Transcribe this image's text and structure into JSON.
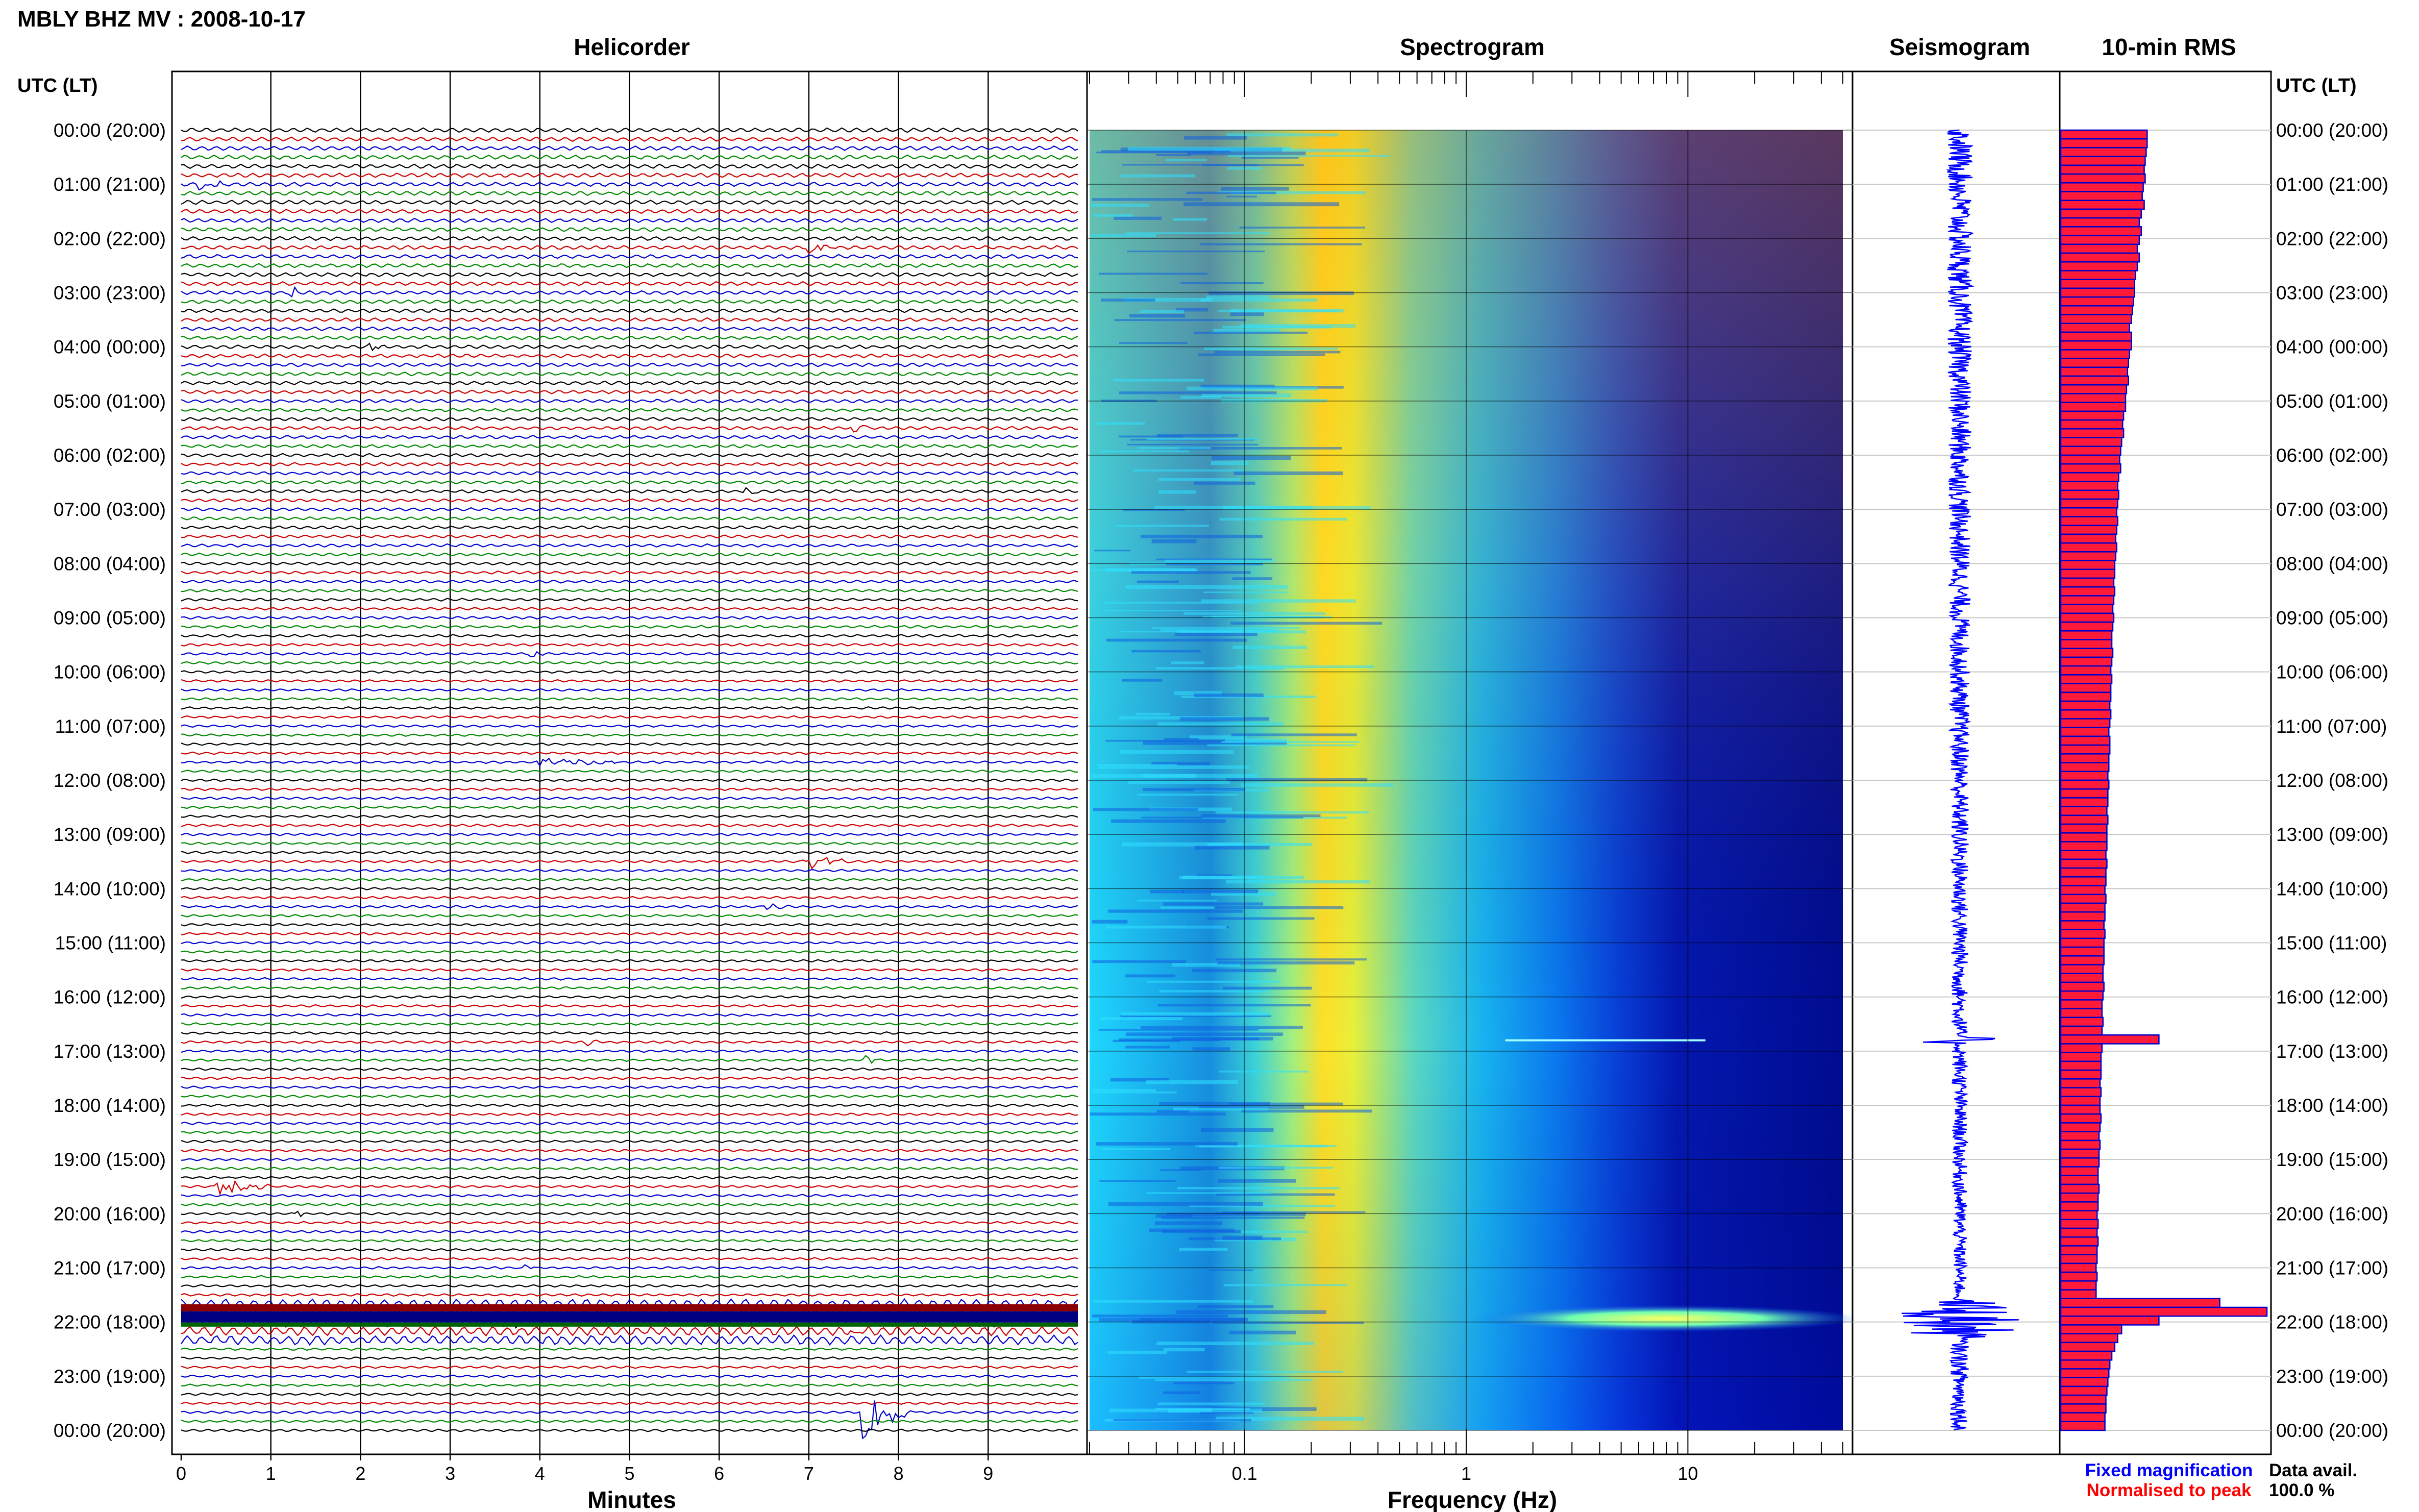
{
  "title": "MBLY BHZ MV : 2008-10-17",
  "left_axis_header": "UTC (LT)",
  "right_axis_header": "UTC (LT)",
  "panels": {
    "helicorder": "Helicorder",
    "spectrogram": "Spectrogram",
    "seismogram": "Seismogram",
    "rms": "10-min RMS"
  },
  "xlabels": {
    "helicorder": "Minutes",
    "spectrogram": "Frequency (Hz)"
  },
  "legend": {
    "fixed": "Fixed magnification",
    "normalised": "Normalised to peak",
    "fixed_color": "#0000ff",
    "normalised_color": "#ff0000"
  },
  "availability": {
    "label": "Data avail.",
    "value": "100.0 %"
  },
  "chart_data": {
    "type": "helicorder-spectrogram-rms",
    "time_labels": [
      "00:00 (20:00)",
      "01:00 (21:00)",
      "02:00 (22:00)",
      "03:00 (23:00)",
      "04:00 (00:00)",
      "05:00 (01:00)",
      "06:00 (02:00)",
      "07:00 (03:00)",
      "08:00 (04:00)",
      "09:00 (05:00)",
      "10:00 (06:00)",
      "11:00 (07:00)",
      "12:00 (08:00)",
      "13:00 (09:00)",
      "14:00 (10:00)",
      "15:00 (11:00)",
      "16:00 (12:00)",
      "17:00 (13:00)",
      "18:00 (14:00)",
      "19:00 (15:00)",
      "20:00 (16:00)",
      "21:00 (17:00)",
      "22:00 (18:00)",
      "23:00 (19:00)",
      "00:00 (20:00)"
    ],
    "helicorder": {
      "x_ticks": [
        "0",
        "1",
        "2",
        "3",
        "4",
        "5",
        "6",
        "7",
        "8",
        "9"
      ],
      "xlim": [
        0,
        10
      ],
      "trace_colors": [
        "#000000",
        "#cc0000",
        "#0000cc",
        "#008800"
      ],
      "traces_per_hour": 6
    },
    "spectrogram": {
      "x_ticks": [
        "0.1",
        "1",
        "10"
      ],
      "xlim": [
        0.02,
        50
      ],
      "scale": "log",
      "colormap": [
        "#00008b",
        "#0000ff",
        "#00bfff",
        "#00ffff",
        "#7fff7f",
        "#ffff00",
        "#ffa500"
      ]
    },
    "rms": {
      "interval_minutes": 10,
      "values": [
        0.88,
        0.88,
        0.87,
        0.86,
        0.85,
        0.86,
        0.84,
        0.83,
        0.85,
        0.82,
        0.8,
        0.82,
        0.8,
        0.78,
        0.8,
        0.78,
        0.76,
        0.75,
        0.75,
        0.74,
        0.73,
        0.72,
        0.7,
        0.72,
        0.72,
        0.7,
        0.69,
        0.68,
        0.69,
        0.67,
        0.66,
        0.66,
        0.64,
        0.63,
        0.64,
        0.62,
        0.61,
        0.6,
        0.61,
        0.59,
        0.58,
        0.59,
        0.58,
        0.57,
        0.58,
        0.57,
        0.56,
        0.57,
        0.56,
        0.55,
        0.55,
        0.54,
        0.55,
        0.54,
        0.53,
        0.54,
        0.53,
        0.52,
        0.52,
        0.53,
        0.52,
        0.51,
        0.52,
        0.51,
        0.51,
        0.5,
        0.51,
        0.5,
        0.49,
        0.5,
        0.5,
        0.49,
        0.49,
        0.48,
        0.49,
        0.48,
        0.48,
        0.47,
        0.48,
        0.47,
        0.47,
        0.47,
        0.46,
        0.47,
        0.46,
        0.46,
        0.45,
        0.46,
        0.45,
        0.45,
        0.44,
        0.45,
        0.44,
        0.44,
        0.44,
        0.43,
        0.43,
        0.44,
        0.43,
        0.42,
        0.42,
        0.43,
        0.42,
        1.0,
        0.42,
        0.41,
        0.41,
        0.41,
        0.4,
        0.41,
        0.4,
        0.4,
        0.41,
        0.4,
        0.39,
        0.4,
        0.39,
        0.39,
        0.38,
        0.38,
        0.39,
        0.38,
        0.38,
        0.37,
        0.38,
        0.37,
        0.38,
        0.37,
        0.37,
        0.36,
        0.37,
        0.36,
        0.36,
        1.62,
        2.1,
        1.0,
        0.62,
        0.58,
        0.55,
        0.52,
        0.5,
        0.49,
        0.48,
        0.47,
        0.46,
        0.46,
        0.45,
        0.45
      ]
    }
  }
}
